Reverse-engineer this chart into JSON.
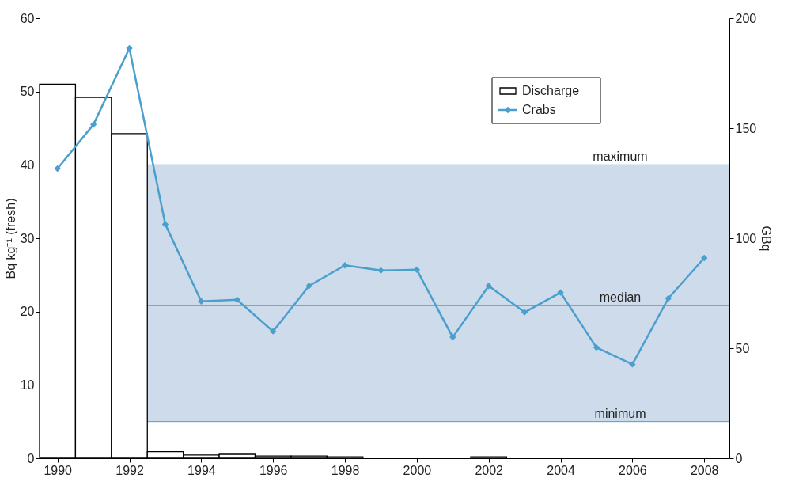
{
  "chart_data": {
    "type": "bar",
    "ylabel": "Bq kg⁻¹ (fresh)",
    "y2label": "GBq",
    "xlim": [
      1989.5,
      2008.7
    ],
    "xticks": [
      1990,
      1992,
      1994,
      1996,
      1998,
      2000,
      2002,
      2004,
      2006,
      2008
    ],
    "ylim": [
      0,
      60
    ],
    "yticks": [
      0,
      10,
      20,
      30,
      40,
      50,
      60
    ],
    "y2lim": [
      0,
      200
    ],
    "y2ticks": [
      0,
      50,
      100,
      150,
      200
    ],
    "series": [
      {
        "name": "Discharge",
        "axis": "y2",
        "color": "#000000",
        "x": [
          1990,
          1991,
          1992,
          1993,
          1994,
          1995,
          1996,
          1997,
          1998,
          2002
        ],
        "values": [
          170,
          164,
          147.5,
          3,
          1.5,
          1.8,
          1,
          1,
          0.7,
          0.7
        ]
      },
      {
        "name": "Crabs",
        "type": "line",
        "color": "#4a9fcc",
        "marker": "diamond",
        "x": [
          1990,
          1991,
          1992,
          1993,
          1994,
          1995,
          1996,
          1997,
          1998,
          1999,
          2000,
          2001,
          2002,
          2003,
          2004,
          2005,
          2006,
          2007,
          2008
        ],
        "values": [
          39.5,
          45.5,
          55.9,
          31.9,
          21.4,
          21.6,
          17.3,
          23.5,
          26.3,
          25.6,
          25.7,
          16.5,
          23.5,
          19.9,
          22.6,
          15.1,
          12.8,
          21.8,
          27.3
        ]
      }
    ],
    "bands": [
      {
        "axis": "y",
        "from": 5,
        "to": 40,
        "color": "#cddbeb"
      }
    ],
    "ref_lines": [
      {
        "axis": "y",
        "value": 40,
        "label": "maximum",
        "color": "#4a9fcc"
      },
      {
        "axis": "y",
        "value": 20.8,
        "label": "median",
        "color": "#4a9fcc"
      },
      {
        "axis": "y",
        "value": 5,
        "label": "minimum",
        "color": "#4a9fcc"
      }
    ],
    "legend": "top right"
  }
}
